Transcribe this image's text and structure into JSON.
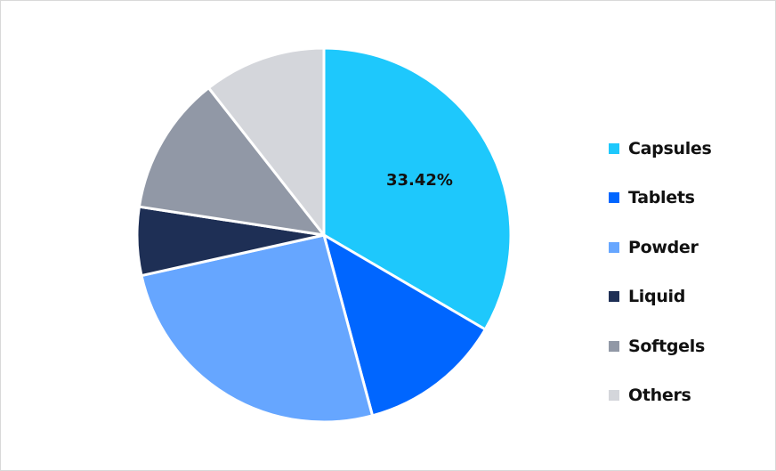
{
  "chart_data": {
    "type": "pie",
    "title": "",
    "categories": [
      "Capsules",
      "Tablets",
      "Powder",
      "Liquid",
      "Softgels",
      "Others"
    ],
    "values": [
      33.42,
      12.4,
      25.7,
      5.9,
      12.0,
      10.58
    ],
    "colors": [
      "#1ec8fc",
      "#0066ff",
      "#66a6ff",
      "#1e2f55",
      "#9198a6",
      "#d4d6db"
    ],
    "data_labels": [
      {
        "category": "Capsules",
        "text": "33.42%"
      }
    ],
    "legend_position": "right",
    "start_angle_deg": 0,
    "direction": "clockwise"
  },
  "legend": {
    "items": [
      {
        "label": "Capsules",
        "color": "#1ec8fc"
      },
      {
        "label": "Tablets",
        "color": "#0066ff"
      },
      {
        "label": "Powder",
        "color": "#66a6ff"
      },
      {
        "label": "Liquid",
        "color": "#1e2f55"
      },
      {
        "label": "Softgels",
        "color": "#9198a6"
      },
      {
        "label": "Others",
        "color": "#d4d6db"
      }
    ]
  },
  "labels": {
    "capsules_pct": "33.42%"
  }
}
